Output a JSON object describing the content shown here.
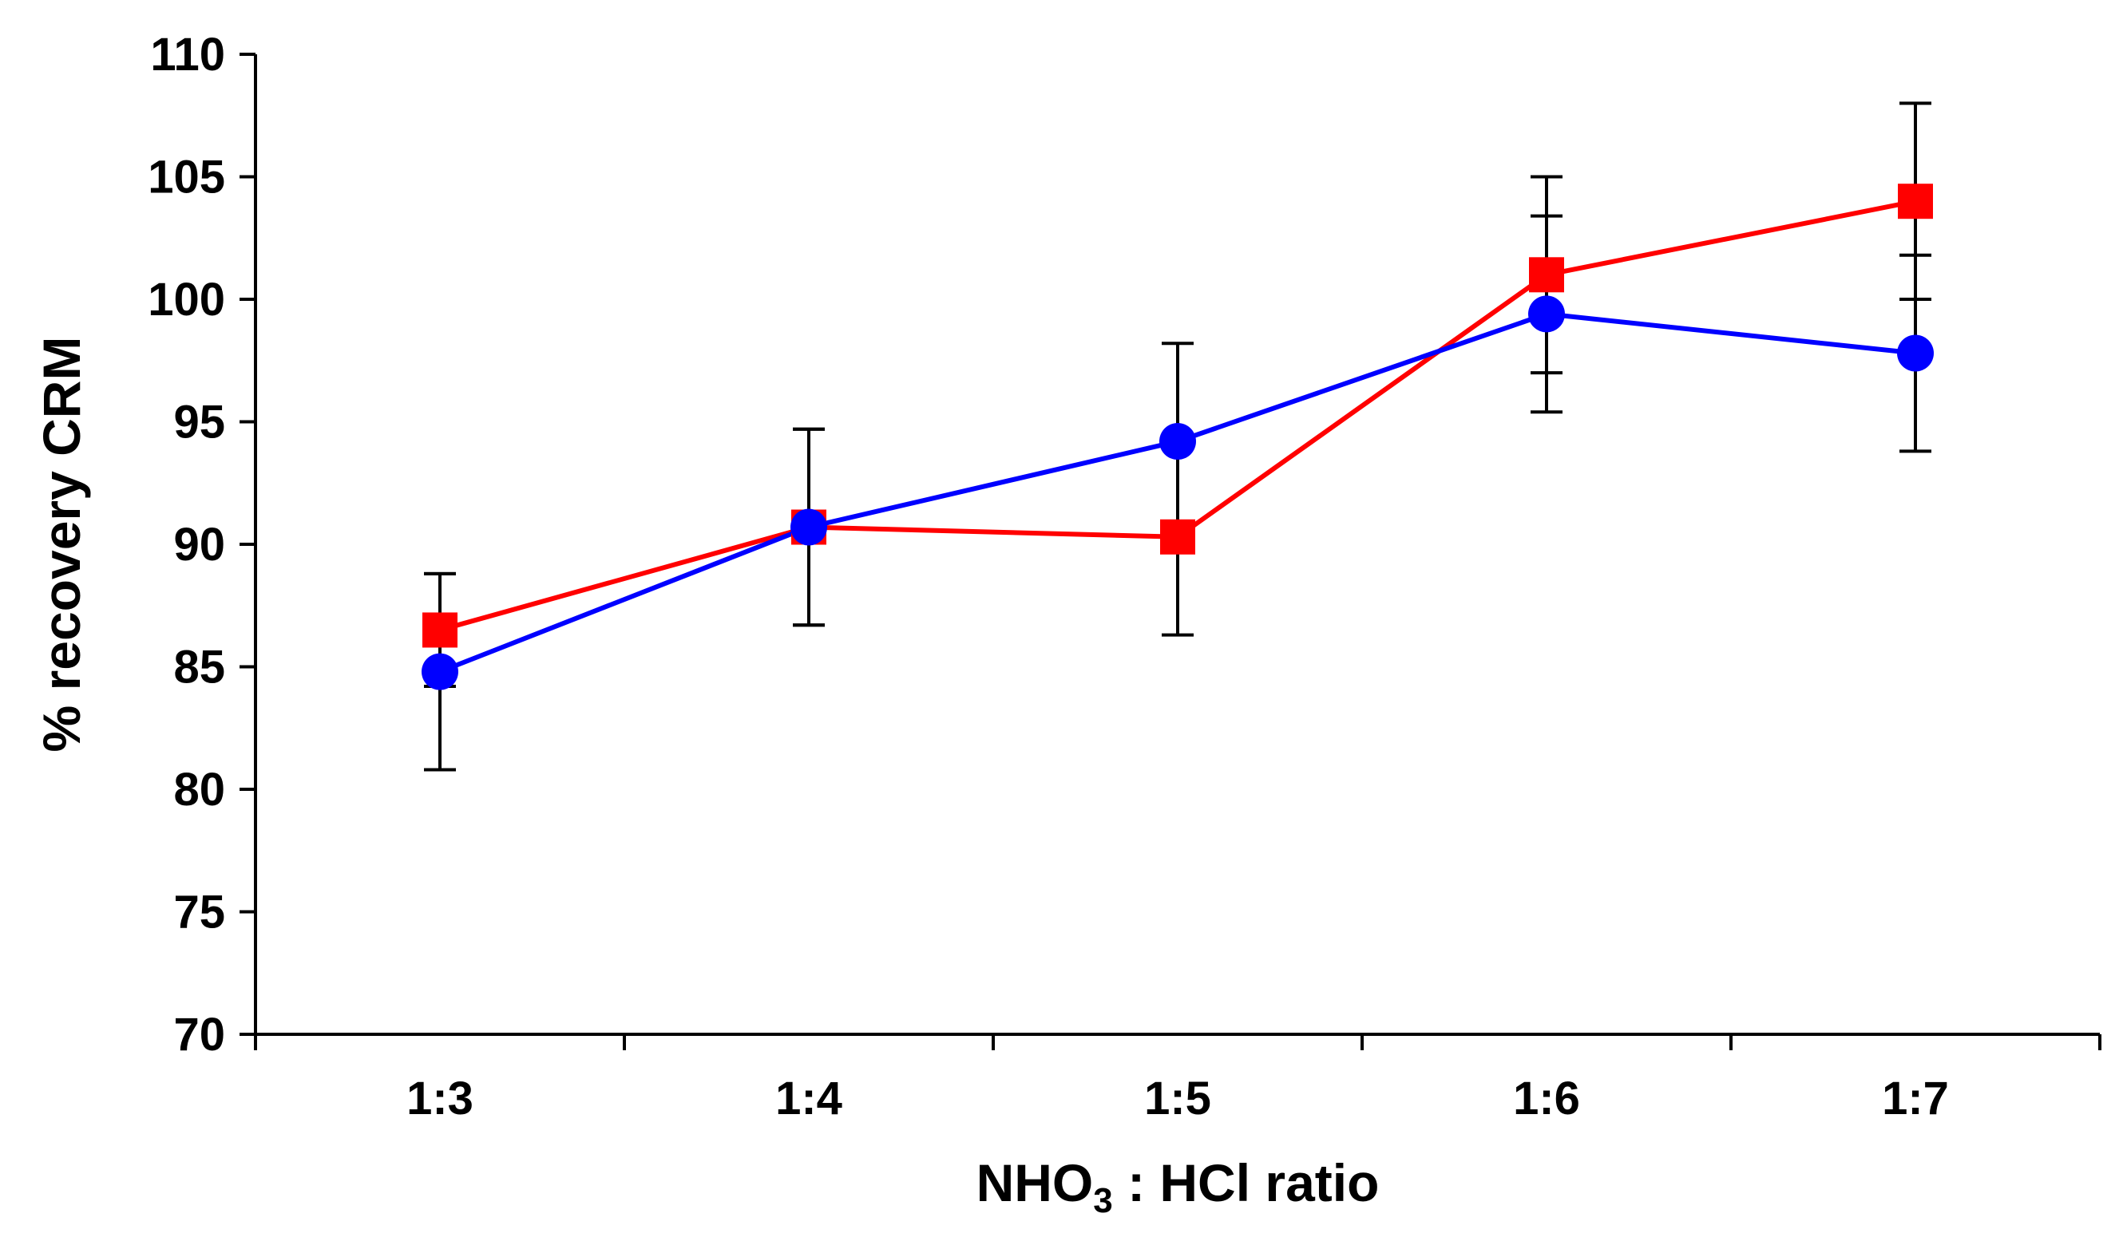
{
  "chart_data": {
    "type": "line",
    "title": "",
    "xlabel": "NHO3 : HCl ratio",
    "xlabel_parts": {
      "prefix": "NHO",
      "subscript": "3",
      "suffix": " : HCl ratio"
    },
    "ylabel": "% recovery CRM",
    "ylim": [
      70,
      110
    ],
    "yticks": [
      70,
      75,
      80,
      85,
      90,
      95,
      100,
      105,
      110
    ],
    "categories": [
      "1:3",
      "1:4",
      "1:5",
      "1:6",
      "1:7"
    ],
    "grid": false,
    "legend": "none",
    "series": [
      {
        "name": "red squares",
        "color": "#ff0000",
        "marker": "square",
        "values": [
          86.5,
          90.7,
          90.3,
          101.0,
          104.0
        ],
        "errors": [
          2.3,
          4.0,
          4.0,
          4.0,
          4.0
        ]
      },
      {
        "name": "blue circles",
        "color": "#0000ff",
        "marker": "circle",
        "values": [
          84.8,
          90.7,
          94.2,
          99.4,
          97.8
        ],
        "errors": [
          4.0,
          4.0,
          4.0,
          4.0,
          4.0
        ]
      }
    ]
  }
}
